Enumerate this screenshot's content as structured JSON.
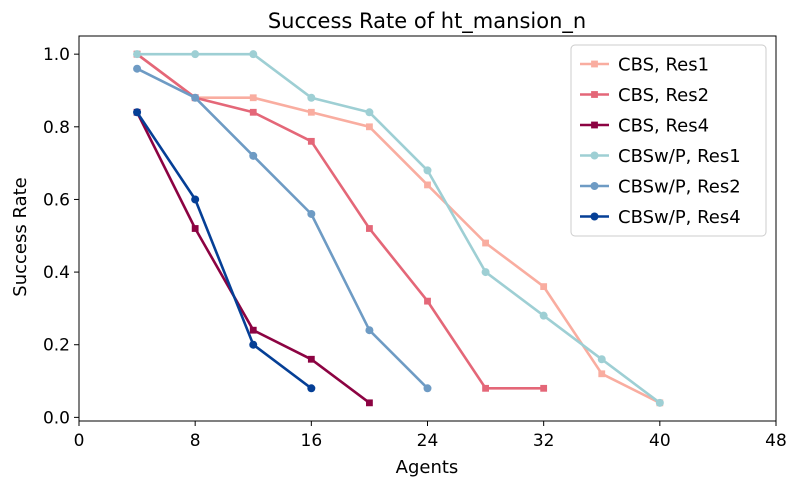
{
  "chart_data": {
    "type": "line",
    "title": "Success Rate of ht_mansion_n",
    "xlabel": "Agents",
    "ylabel": "Success Rate",
    "xlim": [
      0,
      48
    ],
    "ylim": [
      -0.01,
      1.05
    ],
    "xticks": [
      0,
      8,
      16,
      24,
      32,
      40,
      48
    ],
    "yticks": [
      0.0,
      0.2,
      0.4,
      0.6,
      0.8,
      1.0
    ],
    "xtick_labels": [
      "0",
      "8",
      "16",
      "24",
      "32",
      "40",
      "48"
    ],
    "ytick_labels": [
      "0.0",
      "0.2",
      "0.4",
      "0.6",
      "0.8",
      "1.0"
    ],
    "grid": false,
    "legend_position": "top-right",
    "series": [
      {
        "name": "CBS, Res1",
        "color": "#f9ada0",
        "marker": "square",
        "x": [
          4,
          8,
          12,
          16,
          20,
          24,
          28,
          32,
          36,
          40
        ],
        "y": [
          1.0,
          0.88,
          0.88,
          0.84,
          0.8,
          0.64,
          0.48,
          0.36,
          0.12,
          0.04
        ]
      },
      {
        "name": "CBS, Res2",
        "color": "#e46778",
        "marker": "square",
        "x": [
          4,
          8,
          12,
          16,
          20,
          24,
          28,
          32
        ],
        "y": [
          1.0,
          0.88,
          0.84,
          0.76,
          0.52,
          0.32,
          0.08,
          0.08
        ]
      },
      {
        "name": "CBS, Res4",
        "color": "#8c0342",
        "marker": "square",
        "x": [
          4,
          8,
          12,
          16,
          20
        ],
        "y": [
          0.84,
          0.52,
          0.24,
          0.16,
          0.04
        ]
      },
      {
        "name": "CBSw/P, Res1",
        "color": "#9ecfd4",
        "marker": "circle",
        "x": [
          4,
          8,
          12,
          16,
          20,
          24,
          28,
          32,
          36,
          40
        ],
        "y": [
          1.0,
          1.0,
          1.0,
          0.88,
          0.84,
          0.68,
          0.4,
          0.28,
          0.16,
          0.04
        ]
      },
      {
        "name": "CBSw/P, Res2",
        "color": "#6e9bc4",
        "marker": "circle",
        "x": [
          4,
          8,
          12,
          16,
          20,
          24
        ],
        "y": [
          0.96,
          0.88,
          0.72,
          0.56,
          0.24,
          0.08
        ]
      },
      {
        "name": "CBSw/P, Res4",
        "color": "#053f96",
        "marker": "circle",
        "x": [
          4,
          8,
          12,
          16
        ],
        "y": [
          0.84,
          0.6,
          0.2,
          0.08
        ]
      }
    ]
  }
}
